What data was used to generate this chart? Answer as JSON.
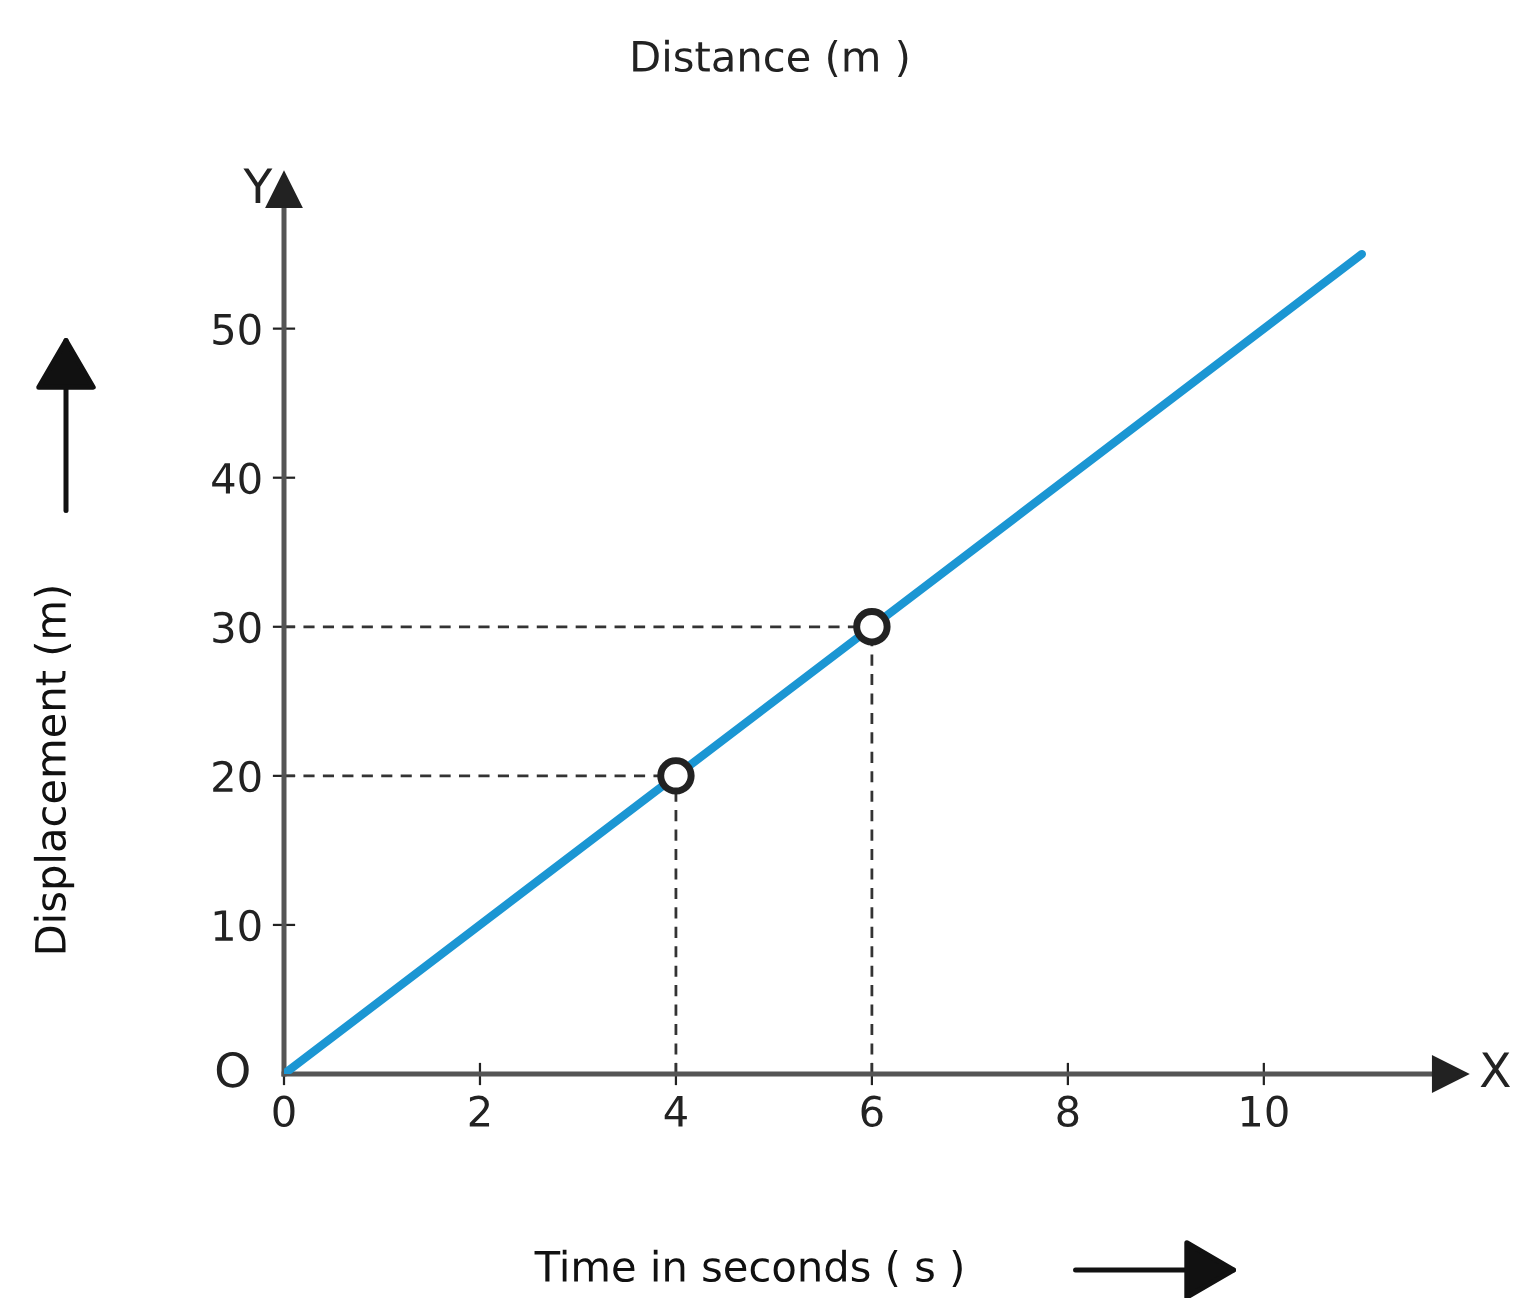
{
  "chart_data": {
    "type": "line",
    "title": "Distance (m )",
    "xlabel": "Time in seconds ( s )",
    "ylabel": "Displacement (m)",
    "series": [
      {
        "color": "#1b96d3",
        "x": [
          0,
          11
        ],
        "values": [
          0,
          55
        ],
        "marker": "none"
      },
      {
        "type": "scatter",
        "color": "#222222",
        "x": [
          4,
          6
        ],
        "values": [
          20,
          30
        ],
        "marker": "circle"
      }
    ],
    "xlim": [
      0,
      11.9
    ],
    "ylim": [
      0,
      59.3
    ],
    "xticks": [
      0,
      2,
      4,
      6,
      8,
      10
    ],
    "yticks": [
      10,
      20,
      30,
      40,
      50
    ],
    "ref_lines": [
      {
        "axis": "x",
        "value": 4,
        "line_style": "dashed",
        "color": "#333333"
      },
      {
        "axis": "x",
        "value": 6,
        "line_style": "dashed",
        "color": "#333333"
      },
      {
        "axis": "y",
        "value": 20,
        "line_style": "dashed",
        "color": "#333333"
      },
      {
        "axis": "y",
        "value": 30,
        "line_style": "dashed",
        "color": "#333333"
      }
    ],
    "annotations": [
      "O",
      "X",
      "Y"
    ],
    "grid": false
  }
}
